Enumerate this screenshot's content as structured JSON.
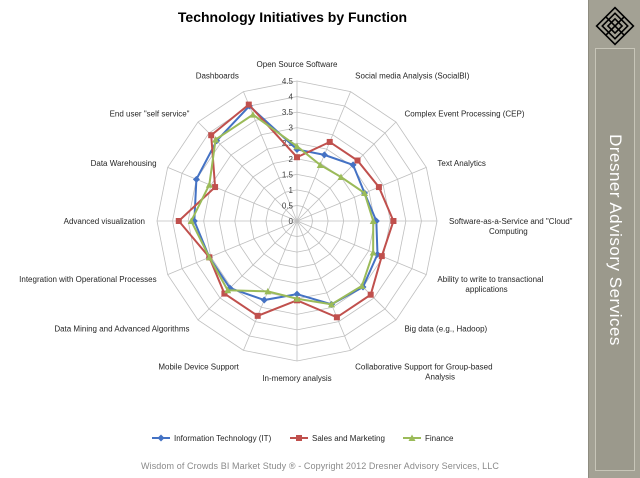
{
  "chart_data": {
    "type": "radar",
    "title": "Technology Initiatives by Function",
    "categories": [
      "Open Source Software",
      "Social media Analysis (SocialBI)",
      "Complex Event Processing (CEP)",
      "Text Analytics",
      "Software-as-a-Service and \"Cloud\" Computing",
      "Ability to write to transactional applications",
      "Big data (e.g., Hadoop)",
      "Collaborative Support for Group-based Analysis",
      "In-memory analysis",
      "Mobile Device Support",
      "Data Mining and Advanced Algorithms",
      "Integration with Operational Processes",
      "Advanced visualization",
      "Data Warehousing",
      "End user \"self service\"",
      "Dashboards"
    ],
    "rlim": [
      0,
      4.5
    ],
    "ticks": [
      "0",
      "0.5",
      "1",
      "1.5",
      "2",
      "2.5",
      "3",
      "3.5",
      "4",
      "4.5"
    ],
    "grid": true,
    "legend_position": "bottom",
    "series": [
      {
        "name": "Information Technology (IT)",
        "color": "#4472c4",
        "marker": "diamond",
        "values": [
          2.3,
          2.3,
          2.55,
          2.35,
          2.55,
          2.8,
          3.0,
          2.9,
          2.35,
          2.75,
          3.05,
          3.05,
          3.3,
          3.5,
          3.65,
          4.0
        ]
      },
      {
        "name": "Sales and Marketing",
        "color": "#c0504d",
        "marker": "square",
        "values": [
          2.05,
          2.75,
          2.75,
          2.85,
          3.1,
          2.95,
          3.35,
          3.35,
          2.55,
          3.3,
          3.3,
          3.05,
          3.8,
          2.85,
          3.9,
          4.05
        ]
      },
      {
        "name": "Finance",
        "color": "#9bbb59",
        "marker": "triangle",
        "values": [
          2.4,
          1.95,
          2.0,
          2.35,
          2.45,
          2.65,
          2.95,
          2.9,
          2.5,
          2.45,
          3.15,
          3.05,
          3.4,
          3.05,
          3.7,
          3.7
        ]
      }
    ]
  },
  "footer_text": "Wisdom of Crowds BI Market Study ® - Copyright 2012 Dresner Advisory Services, LLC",
  "sidebar": {
    "brand": "Dresner Advisory Services",
    "logo_icon": "knot-logo-icon"
  }
}
